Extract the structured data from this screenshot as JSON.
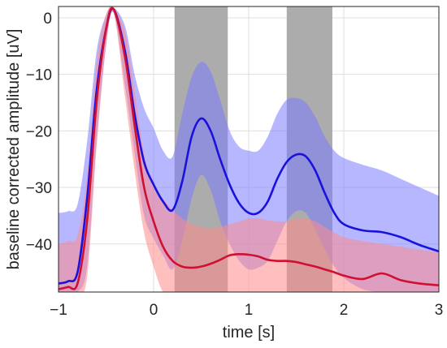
{
  "chart_data": {
    "type": "line",
    "title": "",
    "xlabel": "time [s]",
    "ylabel": "baseline corrected amplitude [uV]",
    "xlim": [
      -1,
      3
    ],
    "ylim": [
      -48.5,
      2
    ],
    "xticks": [
      -1,
      0,
      1,
      2,
      3
    ],
    "xtick_labels": [
      "−1",
      "0",
      "1",
      "2",
      "3"
    ],
    "yticks": [
      0,
      -10,
      -20,
      -30,
      -40
    ],
    "ytick_labels": [
      "0",
      "−10",
      "−20",
      "−30",
      "−40"
    ],
    "grid": true,
    "legend": null,
    "highlight_windows": [
      {
        "x0": 0.22,
        "x1": 0.78,
        "color": "#a8a8a8"
      },
      {
        "x0": 1.4,
        "x1": 1.88,
        "color": "#a8a8a8"
      }
    ],
    "series": [
      {
        "color": "#1a12dc",
        "band_color": "#7c7cff",
        "x": [
          -1.0,
          -0.9,
          -0.8,
          -0.7,
          -0.6,
          -0.5,
          -0.42,
          -0.3,
          -0.2,
          -0.1,
          0.0,
          0.1,
          0.2,
          0.3,
          0.4,
          0.5,
          0.6,
          0.7,
          0.8,
          0.9,
          1.0,
          1.1,
          1.2,
          1.3,
          1.4,
          1.5,
          1.6,
          1.7,
          1.8,
          1.9,
          2.0,
          2.2,
          2.4,
          2.6,
          2.8,
          3.0
        ],
        "values": [
          -47.0,
          -46.6,
          -45.0,
          -32.0,
          -13.0,
          -2.0,
          1.5,
          -6.0,
          -17.0,
          -25.5,
          -29.5,
          -32.5,
          -34.0,
          -29.0,
          -21.0,
          -17.8,
          -20.0,
          -25.0,
          -29.5,
          -32.8,
          -34.5,
          -34.5,
          -32.5,
          -28.5,
          -25.5,
          -24.2,
          -24.5,
          -27.0,
          -31.0,
          -34.5,
          -36.5,
          -37.6,
          -37.9,
          -38.8,
          -40.2,
          -41.3
        ],
        "upper": [
          -34.5,
          -34.2,
          -33.0,
          -22.0,
          -6.0,
          0.5,
          1.8,
          -1.5,
          -10.0,
          -16.0,
          -19.5,
          -23.5,
          -24.5,
          -17.0,
          -10.5,
          -7.8,
          -9.5,
          -14.5,
          -20.0,
          -22.8,
          -23.5,
          -23.5,
          -21.0,
          -17.0,
          -14.5,
          -14.2,
          -15.0,
          -17.5,
          -21.0,
          -23.5,
          -24.8,
          -26.0,
          -27.0,
          -28.5,
          -30.0,
          -31.5
        ],
        "lower": [
          -48.5,
          -48.5,
          -48.5,
          -44.0,
          -22.0,
          -5.0,
          0.8,
          -12.0,
          -24.0,
          -35.0,
          -39.0,
          -42.0,
          -44.5,
          -39.5,
          -32.0,
          -27.8,
          -30.5,
          -36.0,
          -40.0,
          -43.0,
          -44.5,
          -44.2,
          -43.0,
          -39.5,
          -36.0,
          -34.2,
          -34.5,
          -37.5,
          -41.0,
          -44.0,
          -46.0,
          -48.0,
          -48.5,
          -48.5,
          -48.5,
          -48.5
        ]
      },
      {
        "color": "#d01031",
        "band_color": "#ff8a8a",
        "x": [
          -1.0,
          -0.9,
          -0.8,
          -0.7,
          -0.6,
          -0.5,
          -0.42,
          -0.3,
          -0.2,
          -0.1,
          0.0,
          0.1,
          0.2,
          0.3,
          0.4,
          0.5,
          0.6,
          0.7,
          0.8,
          0.9,
          1.0,
          1.1,
          1.2,
          1.3,
          1.4,
          1.5,
          1.6,
          1.7,
          1.8,
          1.9,
          2.0,
          2.2,
          2.4,
          2.6,
          2.8,
          3.0
        ],
        "values": [
          -48.0,
          -47.6,
          -47.0,
          -36.0,
          -15.0,
          -2.0,
          1.5,
          -7.0,
          -19.0,
          -30.0,
          -36.0,
          -40.5,
          -43.0,
          -44.0,
          -44.2,
          -44.0,
          -43.5,
          -42.8,
          -42.0,
          -41.8,
          -41.9,
          -42.2,
          -42.8,
          -43.0,
          -43.0,
          -43.2,
          -43.6,
          -44.0,
          -44.5,
          -45.0,
          -45.6,
          -46.2,
          -45.2,
          -46.4,
          -47.0,
          -47.3
        ],
        "upper": [
          -40.0,
          -39.5,
          -38.5,
          -28.0,
          -8.0,
          0.5,
          1.8,
          -2.5,
          -13.0,
          -24.0,
          -30.0,
          -32.0,
          -34.0,
          -35.5,
          -36.5,
          -37.0,
          -37.2,
          -37.0,
          -36.5,
          -36.0,
          -35.5,
          -35.5,
          -35.8,
          -36.0,
          -36.0,
          -35.5,
          -35.5,
          -36.0,
          -37.0,
          -38.0,
          -38.8,
          -39.5,
          -40.0,
          -40.5,
          -41.0,
          -41.5
        ],
        "lower": [
          -48.5,
          -48.5,
          -48.5,
          -46.0,
          -23.0,
          -5.0,
          0.8,
          -14.0,
          -27.0,
          -38.0,
          -44.0,
          -48.5,
          -48.5,
          -48.5,
          -48.5,
          -48.5,
          -48.5,
          -48.5,
          -48.5,
          -48.5,
          -48.5,
          -48.5,
          -48.5,
          -48.5,
          -48.5,
          -48.5,
          -48.5,
          -48.5,
          -48.5,
          -48.5,
          -48.5,
          -48.5,
          -48.5,
          -48.5,
          -48.5,
          -48.5
        ]
      }
    ]
  }
}
